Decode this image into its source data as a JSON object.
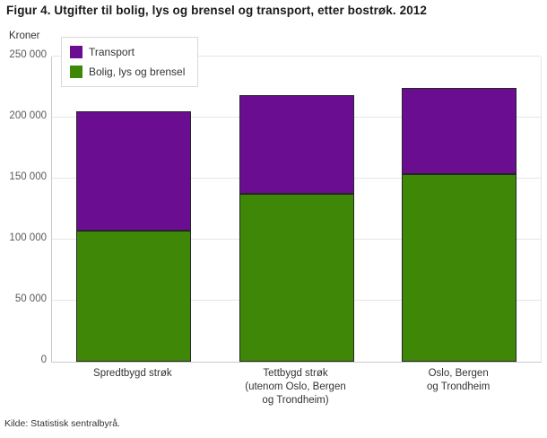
{
  "chart_data": {
    "type": "bar",
    "stacked": true,
    "title": "Figur 4. Utgifter til bolig, lys og brensel og transport, etter bostrøk. 2012",
    "unit_label": "Kroner",
    "source": "Kilde: Statistisk sentralbyrå.",
    "categories": [
      "Spredtbygd strøk",
      "Tettbygd strøk\n(utenom Oslo, Bergen\nog Trondheim)",
      "Oslo, Bergen\nog Trondheim"
    ],
    "series": [
      {
        "name": "Transport",
        "color": "#6a0d90",
        "values": [
          97500,
          81000,
          70000
        ]
      },
      {
        "name": "Bolig, lys og brensel",
        "color": "#3f8807",
        "values": [
          107500,
          137500,
          154000
        ]
      }
    ],
    "stack_order_bottom_to_top": [
      "Bolig, lys og brensel",
      "Transport"
    ],
    "ylim": [
      0,
      250000
    ],
    "y_ticks": [
      {
        "value": 0,
        "label": "0"
      },
      {
        "value": 50000,
        "label": "50 000"
      },
      {
        "value": 100000,
        "label": "100 000"
      },
      {
        "value": 150000,
        "label": "150 000"
      },
      {
        "value": 200000,
        "label": "200 000"
      },
      {
        "value": 250000,
        "label": "250 000"
      }
    ],
    "grid": true,
    "legend_position": "top-left",
    "colors": {
      "gridline": "#e6e6e6",
      "axis_line": "#c9c9c9",
      "bar_border": "#262626",
      "tick_text": "#595959",
      "legend_border": "#d9d9d9"
    }
  }
}
